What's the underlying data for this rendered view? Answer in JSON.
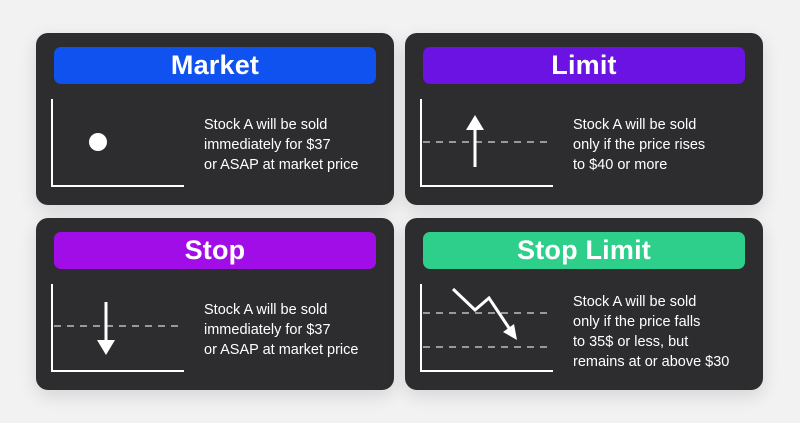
{
  "cards": [
    {
      "title": "Market",
      "color": "#0f52f0",
      "description": [
        "Stock A will be sold",
        "immediately for $37",
        "or ASAP at market price"
      ]
    },
    {
      "title": "Limit",
      "color": "#6a13e2",
      "description": [
        "Stock A will be sold",
        "only if the price rises",
        "to $40 or more"
      ]
    },
    {
      "title": "Stop",
      "color": "#a10de6",
      "description": [
        "Stock A will be sold",
        "immediately for $37",
        "or ASAP at market price"
      ]
    },
    {
      "title": "Stop Limit",
      "color": "#2ecf8a",
      "description": [
        "Stock A will be sold",
        "only if the price falls",
        "to 35$ or less, but",
        "remains at or above $30"
      ]
    }
  ],
  "icons": [
    "dot-marker-icon",
    "arrow-up-icon",
    "arrow-down-icon",
    "arrow-down-right-icon"
  ]
}
